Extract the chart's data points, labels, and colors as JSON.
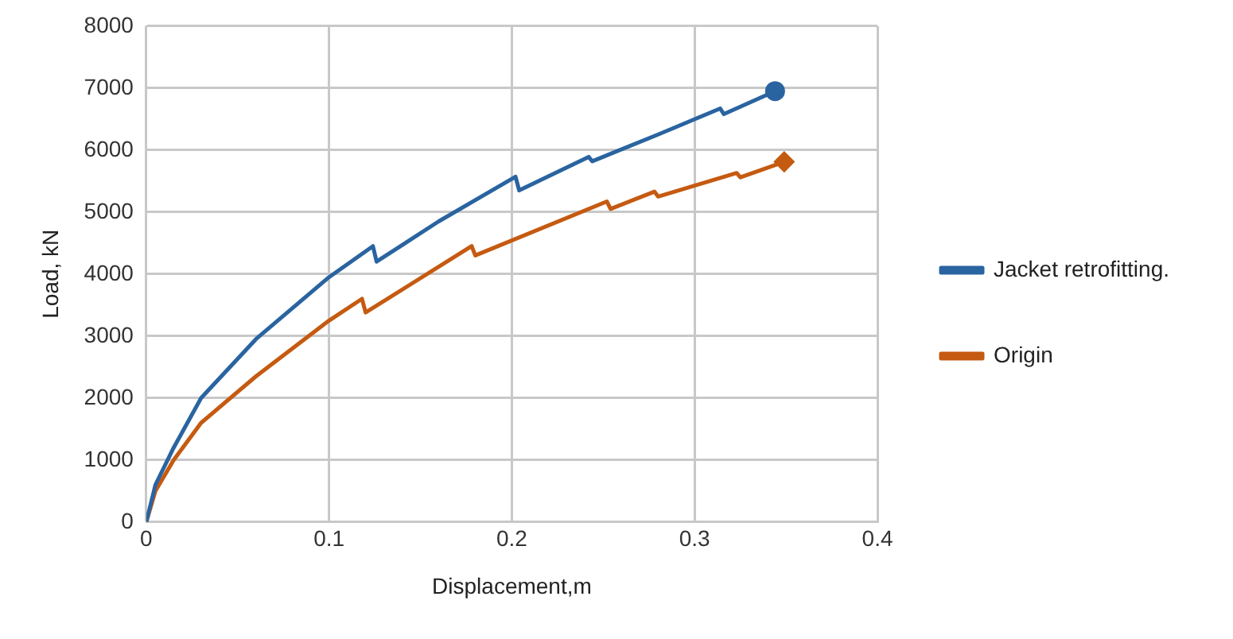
{
  "chart_data": {
    "type": "line",
    "xlabel": "Displacement,m",
    "ylabel": "Load, kN",
    "xlim": [
      0,
      0.4
    ],
    "xticks": [
      0,
      0.1,
      0.2,
      0.3,
      0.4
    ],
    "ylim": [
      0,
      8000
    ],
    "yticks": [
      0,
      1000,
      2000,
      3000,
      4000,
      5000,
      6000,
      7000,
      8000
    ],
    "grid": true,
    "legend": "right",
    "line_style": "solid",
    "series": [
      {
        "name": "Jacket retrofitting.",
        "color": "#2a64a0",
        "x": [
          0,
          0.005,
          0.015,
          0.03,
          0.06,
          0.1,
          0.124,
          0.126,
          0.16,
          0.202,
          0.204,
          0.242,
          0.244,
          0.28,
          0.314,
          0.316,
          0.344
        ],
        "values": [
          0,
          600,
          1200,
          2000,
          2950,
          3950,
          4450,
          4200,
          4850,
          5570,
          5350,
          5890,
          5820,
          6250,
          6670,
          6580,
          6950
        ]
      },
      {
        "name": "Origin",
        "color": "#c55a11",
        "x": [
          0,
          0.005,
          0.015,
          0.03,
          0.06,
          0.1,
          0.118,
          0.12,
          0.178,
          0.18,
          0.252,
          0.254,
          0.278,
          0.28,
          0.323,
          0.325,
          0.349
        ],
        "values": [
          0,
          500,
          1000,
          1600,
          2350,
          3250,
          3600,
          3380,
          4450,
          4300,
          5170,
          5050,
          5330,
          5250,
          5630,
          5560,
          5810
        ]
      },
      {
        "type": "scatter",
        "color": "#2a64a0",
        "marker": "circle",
        "x": [
          0.344
        ],
        "values": [
          6950
        ]
      },
      {
        "type": "scatter",
        "color": "#c55a11",
        "marker": "diamond",
        "x": [
          0.349
        ],
        "values": [
          5810
        ]
      }
    ]
  }
}
